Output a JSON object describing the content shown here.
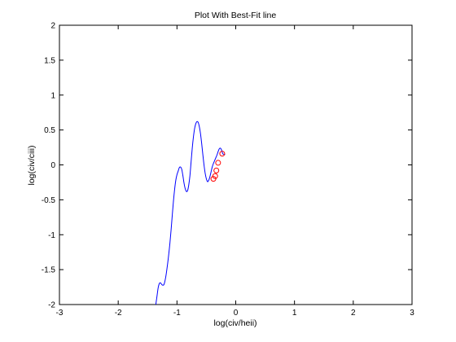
{
  "chart_data": {
    "type": "line",
    "title": "Plot With Best-Fit line",
    "xlabel": "log(civ/heii)",
    "ylabel": "log(civ/ciii)",
    "xlim": [
      -3,
      3
    ],
    "ylim": [
      -2,
      2
    ],
    "x_ticks": [
      -3,
      -2,
      -1,
      0,
      1,
      2,
      3
    ],
    "y_ticks": [
      -2,
      -1.5,
      -1,
      -0.5,
      0,
      0.5,
      1,
      1.5,
      2
    ],
    "x_tick_labels": [
      "-3",
      "-2",
      "-1",
      "0",
      "1",
      "2",
      "3"
    ],
    "y_tick_labels": [
      "-2",
      "-1.5",
      "-1",
      "-0.5",
      "0",
      "0.5",
      "1",
      "1.5",
      "2"
    ],
    "grid": false,
    "series": [
      {
        "kind": "line",
        "color": "#0000ff",
        "x": [
          -1.36,
          -1.34,
          -1.32,
          -1.3,
          -1.28,
          -1.25,
          -1.22,
          -1.19,
          -1.16,
          -1.14,
          -1.12,
          -1.1,
          -1.08,
          -1.06,
          -1.04,
          -1.02,
          -1.0,
          -0.98,
          -0.96,
          -0.94,
          -0.92,
          -0.9,
          -0.88,
          -0.86,
          -0.84,
          -0.82,
          -0.8,
          -0.78,
          -0.76,
          -0.74,
          -0.72,
          -0.7,
          -0.68,
          -0.66,
          -0.64,
          -0.62,
          -0.6,
          -0.58,
          -0.56,
          -0.54,
          -0.52,
          -0.5,
          -0.48,
          -0.46,
          -0.44,
          -0.42,
          -0.4,
          -0.38,
          -0.36,
          -0.34,
          -0.32,
          -0.3,
          -0.28,
          -0.26,
          -0.24,
          -0.22,
          -0.2,
          -0.18
        ],
        "y": [
          -2.0,
          -1.88,
          -1.76,
          -1.7,
          -1.69,
          -1.72,
          -1.71,
          -1.6,
          -1.42,
          -1.28,
          -1.12,
          -0.93,
          -0.72,
          -0.52,
          -0.35,
          -0.22,
          -0.14,
          -0.09,
          -0.04,
          -0.03,
          -0.06,
          -0.15,
          -0.26,
          -0.34,
          -0.38,
          -0.37,
          -0.29,
          -0.16,
          0.04,
          0.24,
          0.4,
          0.52,
          0.59,
          0.62,
          0.61,
          0.55,
          0.45,
          0.31,
          0.15,
          0.0,
          -0.12,
          -0.2,
          -0.24,
          -0.22,
          -0.17,
          -0.1,
          -0.03,
          0.02,
          0.06,
          0.1,
          0.14,
          0.19,
          0.23,
          0.24,
          0.21,
          0.16,
          0.15,
          0.15
        ]
      },
      {
        "kind": "markers",
        "color": "#ff0000",
        "marker": "circle",
        "x": [
          -0.38,
          -0.35,
          -0.33,
          -0.3,
          -0.23
        ],
        "y": [
          -0.2,
          -0.16,
          -0.08,
          0.03,
          0.16
        ]
      }
    ]
  }
}
